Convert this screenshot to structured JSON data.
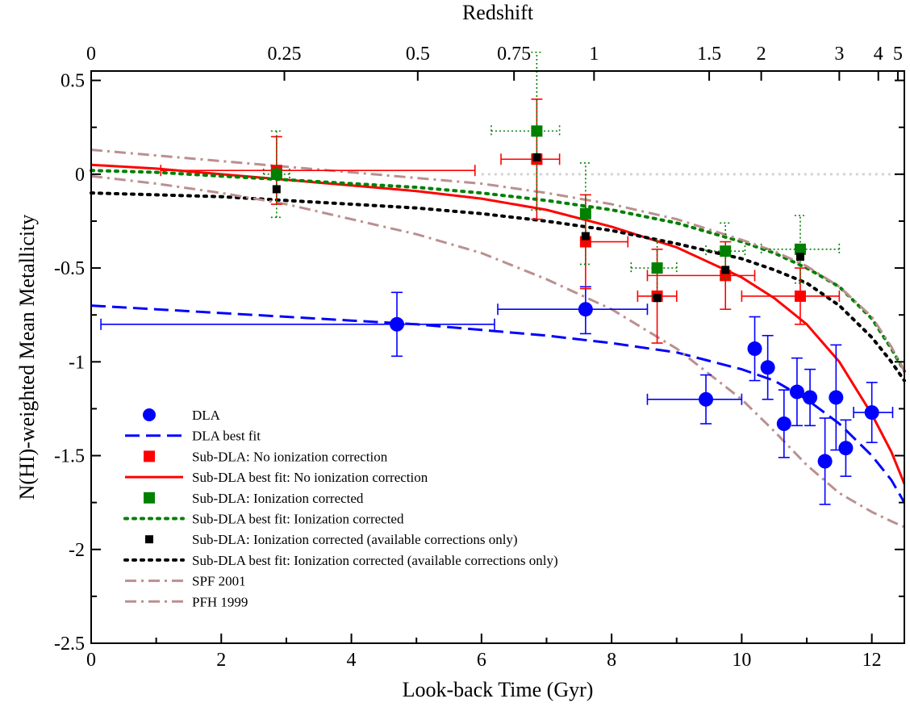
{
  "chart_data": {
    "type": "scatter",
    "xlabel": "Look-back Time (Gyr)",
    "ylabel": "N(HI)-weighted Mean Metallicity",
    "top_axis_label": "Redshift",
    "xlim": [
      0,
      12.5
    ],
    "ylim": [
      -2.5,
      0.55
    ],
    "x_ticks": [
      "0",
      "2",
      "4",
      "6",
      "8",
      "10",
      "12"
    ],
    "y_ticks": [
      "0.5",
      "0",
      "-0.5",
      "-1",
      "-1.5",
      "-2",
      "-2.5"
    ],
    "top_ticks": [
      {
        "label": "0",
        "x": 0
      },
      {
        "label": "0.25",
        "x": 2.97
      },
      {
        "label": "0.5",
        "x": 5.02
      },
      {
        "label": "0.75",
        "x": 6.5
      },
      {
        "label": "1",
        "x": 7.73
      },
      {
        "label": "1.5",
        "x": 9.5
      },
      {
        "label": "2",
        "x": 10.3
      },
      {
        "label": "3",
        "x": 11.5
      },
      {
        "label": "4",
        "x": 12.1
      },
      {
        "label": "5",
        "x": 12.4
      }
    ],
    "reference_line": {
      "y": 0,
      "x_from": 6.0,
      "x_to": 12.5,
      "color": "#d3d3d3"
    },
    "series": [
      {
        "name": "DLA",
        "kind": "points",
        "marker": "circle",
        "color": "#0000ff",
        "points": [
          {
            "x": 4.7,
            "y": -0.8,
            "xerr": [
              4.55,
              1.5
            ],
            "yerr": [
              0.17,
              0.17
            ]
          },
          {
            "x": 7.6,
            "y": -0.72,
            "xerr": [
              1.35,
              0.95
            ],
            "yerr": [
              0.13,
              0.12
            ]
          },
          {
            "x": 9.45,
            "y": -1.2,
            "xerr": [
              0.9,
              0.55
            ],
            "yerr": [
              0.13,
              0.13
            ]
          },
          {
            "x": 10.2,
            "y": -0.93,
            "xerr": [
              0,
              0
            ],
            "yerr": [
              0.17,
              0.17
            ]
          },
          {
            "x": 10.4,
            "y": -1.03,
            "xerr": [
              0,
              0
            ],
            "yerr": [
              0.17,
              0.17
            ]
          },
          {
            "x": 10.65,
            "y": -1.33,
            "xerr": [
              0,
              0
            ],
            "yerr": [
              0.18,
              0.18
            ]
          },
          {
            "x": 10.85,
            "y": -1.16,
            "xerr": [
              0,
              0
            ],
            "yerr": [
              0.18,
              0.18
            ]
          },
          {
            "x": 11.05,
            "y": -1.19,
            "xerr": [
              0,
              0
            ],
            "yerr": [
              0.15,
              0.15
            ]
          },
          {
            "x": 11.28,
            "y": -1.53,
            "xerr": [
              0,
              0
            ],
            "yerr": [
              0.23,
              0.23
            ]
          },
          {
            "x": 11.45,
            "y": -1.19,
            "xerr": [
              0,
              0
            ],
            "yerr": [
              0.28,
              0.28
            ]
          },
          {
            "x": 11.6,
            "y": -1.46,
            "xerr": [
              0,
              0
            ],
            "yerr": [
              0.15,
              0.15
            ]
          },
          {
            "x": 12.0,
            "y": -1.27,
            "xerr": [
              0.28,
              0.32
            ],
            "yerr": [
              0.16,
              0.16
            ]
          }
        ]
      },
      {
        "name": "Sub-DLA: No ionization correction",
        "kind": "points",
        "marker": "square",
        "color": "#ff0000",
        "errstyle": "solid",
        "points": [
          {
            "x": 2.85,
            "y": 0.02,
            "xerr": [
              1.78,
              3.05
            ],
            "yerr": [
              0.18,
              0.18
            ]
          },
          {
            "x": 6.85,
            "y": 0.08,
            "xerr": [
              0.55,
              0.35
            ],
            "yerr": [
              0.32,
              0.32
            ]
          },
          {
            "x": 7.6,
            "y": -0.36,
            "xerr": [
              0,
              0.65
            ],
            "yerr": [
              0.25,
              0.25
            ]
          },
          {
            "x": 8.7,
            "y": -0.65,
            "xerr": [
              0.3,
              0.3
            ],
            "yerr": [
              0.25,
              0.25
            ]
          },
          {
            "x": 9.75,
            "y": -0.54,
            "xerr": [
              1.2,
              0.45
            ],
            "yerr": [
              0.18,
              0.18
            ]
          },
          {
            "x": 10.9,
            "y": -0.65,
            "xerr": [
              0.9,
              0.6
            ],
            "yerr": [
              0.15,
              0.15
            ]
          }
        ]
      },
      {
        "name": "Sub-DLA: Ionization corrected",
        "kind": "points",
        "marker": "square",
        "color": "#008000",
        "errstyle": "dotted",
        "points": [
          {
            "x": 2.85,
            "y": 0.0,
            "xerr": [
              0.2,
              0.2
            ],
            "yerr": [
              0.23,
              0.23
            ]
          },
          {
            "x": 6.85,
            "y": 0.23,
            "xerr": [
              0.7,
              0.35
            ],
            "yerr": [
              0.42,
              0.42
            ]
          },
          {
            "x": 7.6,
            "y": -0.21,
            "xerr": [
              0,
              0
            ],
            "yerr": [
              0.27,
              0.27
            ]
          },
          {
            "x": 8.7,
            "y": -0.5,
            "xerr": [
              0.4,
              0.3
            ],
            "yerr": [
              0.15,
              0.15
            ]
          },
          {
            "x": 9.75,
            "y": -0.41,
            "xerr": [
              0.3,
              0.3
            ],
            "yerr": [
              0.15,
              0.15
            ]
          },
          {
            "x": 10.9,
            "y": -0.4,
            "xerr": [
              0.6,
              0.6
            ],
            "yerr": [
              0.18,
              0.18
            ]
          }
        ]
      },
      {
        "name": "Sub-DLA: Ionization corrected (available corrections only)",
        "kind": "points",
        "marker": "smallsquare",
        "color": "#000000",
        "points": [
          {
            "x": 2.85,
            "y": -0.08
          },
          {
            "x": 6.85,
            "y": 0.09
          },
          {
            "x": 7.6,
            "y": -0.33
          },
          {
            "x": 8.7,
            "y": -0.66
          },
          {
            "x": 9.75,
            "y": -0.51
          },
          {
            "x": 10.9,
            "y": -0.44
          }
        ]
      },
      {
        "name": "DLA best fit",
        "kind": "line",
        "style": "dashed",
        "color": "#0000ff",
        "x": [
          0,
          1,
          2,
          3,
          4,
          5,
          6,
          7,
          8,
          9,
          10,
          10.5,
          11,
          11.5,
          12,
          12.3,
          12.5
        ],
        "y": [
          -0.7,
          -0.72,
          -0.74,
          -0.76,
          -0.78,
          -0.8,
          -0.83,
          -0.86,
          -0.9,
          -0.95,
          -1.04,
          -1.1,
          -1.2,
          -1.33,
          -1.5,
          -1.63,
          -1.75
        ]
      },
      {
        "name": "Sub-DLA best fit: No ionization correction",
        "kind": "line",
        "style": "solid",
        "color": "#ff0000",
        "x": [
          0,
          1,
          2,
          3,
          4,
          5,
          6,
          7,
          8,
          9,
          10,
          10.5,
          11,
          11.5,
          12,
          12.3,
          12.5
        ],
        "y": [
          0.05,
          0.03,
          0.0,
          -0.03,
          -0.06,
          -0.09,
          -0.13,
          -0.19,
          -0.28,
          -0.39,
          -0.55,
          -0.66,
          -0.8,
          -1.0,
          -1.28,
          -1.48,
          -1.65
        ]
      },
      {
        "name": "Sub-DLA best fit: Ionization corrected",
        "kind": "line",
        "style": "dotted",
        "color": "#008000",
        "x": [
          0,
          1,
          2,
          3,
          4,
          5,
          6,
          7,
          8,
          9,
          10,
          10.5,
          11,
          11.5,
          12,
          12.3,
          12.5
        ],
        "y": [
          0.02,
          0.01,
          -0.01,
          -0.03,
          -0.05,
          -0.07,
          -0.1,
          -0.14,
          -0.19,
          -0.26,
          -0.36,
          -0.42,
          -0.5,
          -0.6,
          -0.77,
          -0.93,
          -1.05
        ]
      },
      {
        "name": "Sub-DLA best fit: Ionization corrected (available corrections only)",
        "kind": "line",
        "style": "dotted",
        "color": "#000000",
        "x": [
          0,
          1,
          2,
          3,
          4,
          5,
          6,
          7,
          8,
          9,
          10,
          10.5,
          11,
          11.5,
          12,
          12.3,
          12.5
        ],
        "y": [
          -0.1,
          -0.11,
          -0.12,
          -0.14,
          -0.16,
          -0.18,
          -0.21,
          -0.25,
          -0.3,
          -0.37,
          -0.45,
          -0.51,
          -0.58,
          -0.7,
          -0.87,
          -1.0,
          -1.1
        ]
      },
      {
        "name": "SPF 2001",
        "kind": "line",
        "style": "dashdot",
        "color": "#bc8f8f",
        "x": [
          0,
          1,
          2,
          3,
          4,
          5,
          6,
          7,
          8,
          9,
          10,
          10.5,
          11,
          11.5,
          12,
          12.3,
          12.5
        ],
        "y": [
          0.13,
          0.1,
          0.07,
          0.04,
          0.01,
          -0.02,
          -0.05,
          -0.1,
          -0.16,
          -0.24,
          -0.35,
          -0.41,
          -0.49,
          -0.6,
          -0.76,
          -0.92,
          -1.05
        ]
      },
      {
        "name": "PFH 1999",
        "kind": "line",
        "style": "dashdot",
        "color": "#bc8f8f",
        "x": [
          0,
          1,
          2,
          3,
          4,
          5,
          6,
          7,
          8,
          9,
          10,
          10.5,
          11,
          11.5,
          12,
          12.3,
          12.5
        ],
        "y": [
          -0.01,
          -0.05,
          -0.1,
          -0.16,
          -0.24,
          -0.32,
          -0.42,
          -0.56,
          -0.72,
          -0.93,
          -1.2,
          -1.37,
          -1.55,
          -1.7,
          -1.8,
          -1.85,
          -1.88
        ]
      }
    ],
    "legend": {
      "placement": "lower-left",
      "entries": [
        {
          "label": "DLA",
          "kind": "marker",
          "marker": "circle",
          "color": "#0000ff"
        },
        {
          "label": "DLA best fit",
          "kind": "line",
          "style": "dashed",
          "color": "#0000ff"
        },
        {
          "label": "Sub-DLA: No ionization correction",
          "kind": "marker",
          "marker": "square",
          "color": "#ff0000"
        },
        {
          "label": "Sub-DLA best fit: No ionization correction",
          "kind": "line",
          "style": "solid",
          "color": "#ff0000"
        },
        {
          "label": "Sub-DLA: Ionization corrected",
          "kind": "marker",
          "marker": "square",
          "color": "#008000"
        },
        {
          "label": "Sub-DLA best fit: Ionization corrected",
          "kind": "line",
          "style": "dotted",
          "color": "#008000"
        },
        {
          "label": "Sub-DLA: Ionization corrected (available corrections only)",
          "kind": "marker",
          "marker": "smallsquare",
          "color": "#000000"
        },
        {
          "label": "Sub-DLA best fit: Ionization corrected (available corrections only)",
          "kind": "line",
          "style": "dotted",
          "color": "#000000"
        },
        {
          "label": "SPF 2001",
          "kind": "line",
          "style": "dashdot",
          "color": "#bc8f8f"
        },
        {
          "label": "PFH 1999",
          "kind": "line",
          "style": "dashdot",
          "color": "#bc8f8f"
        }
      ]
    }
  }
}
